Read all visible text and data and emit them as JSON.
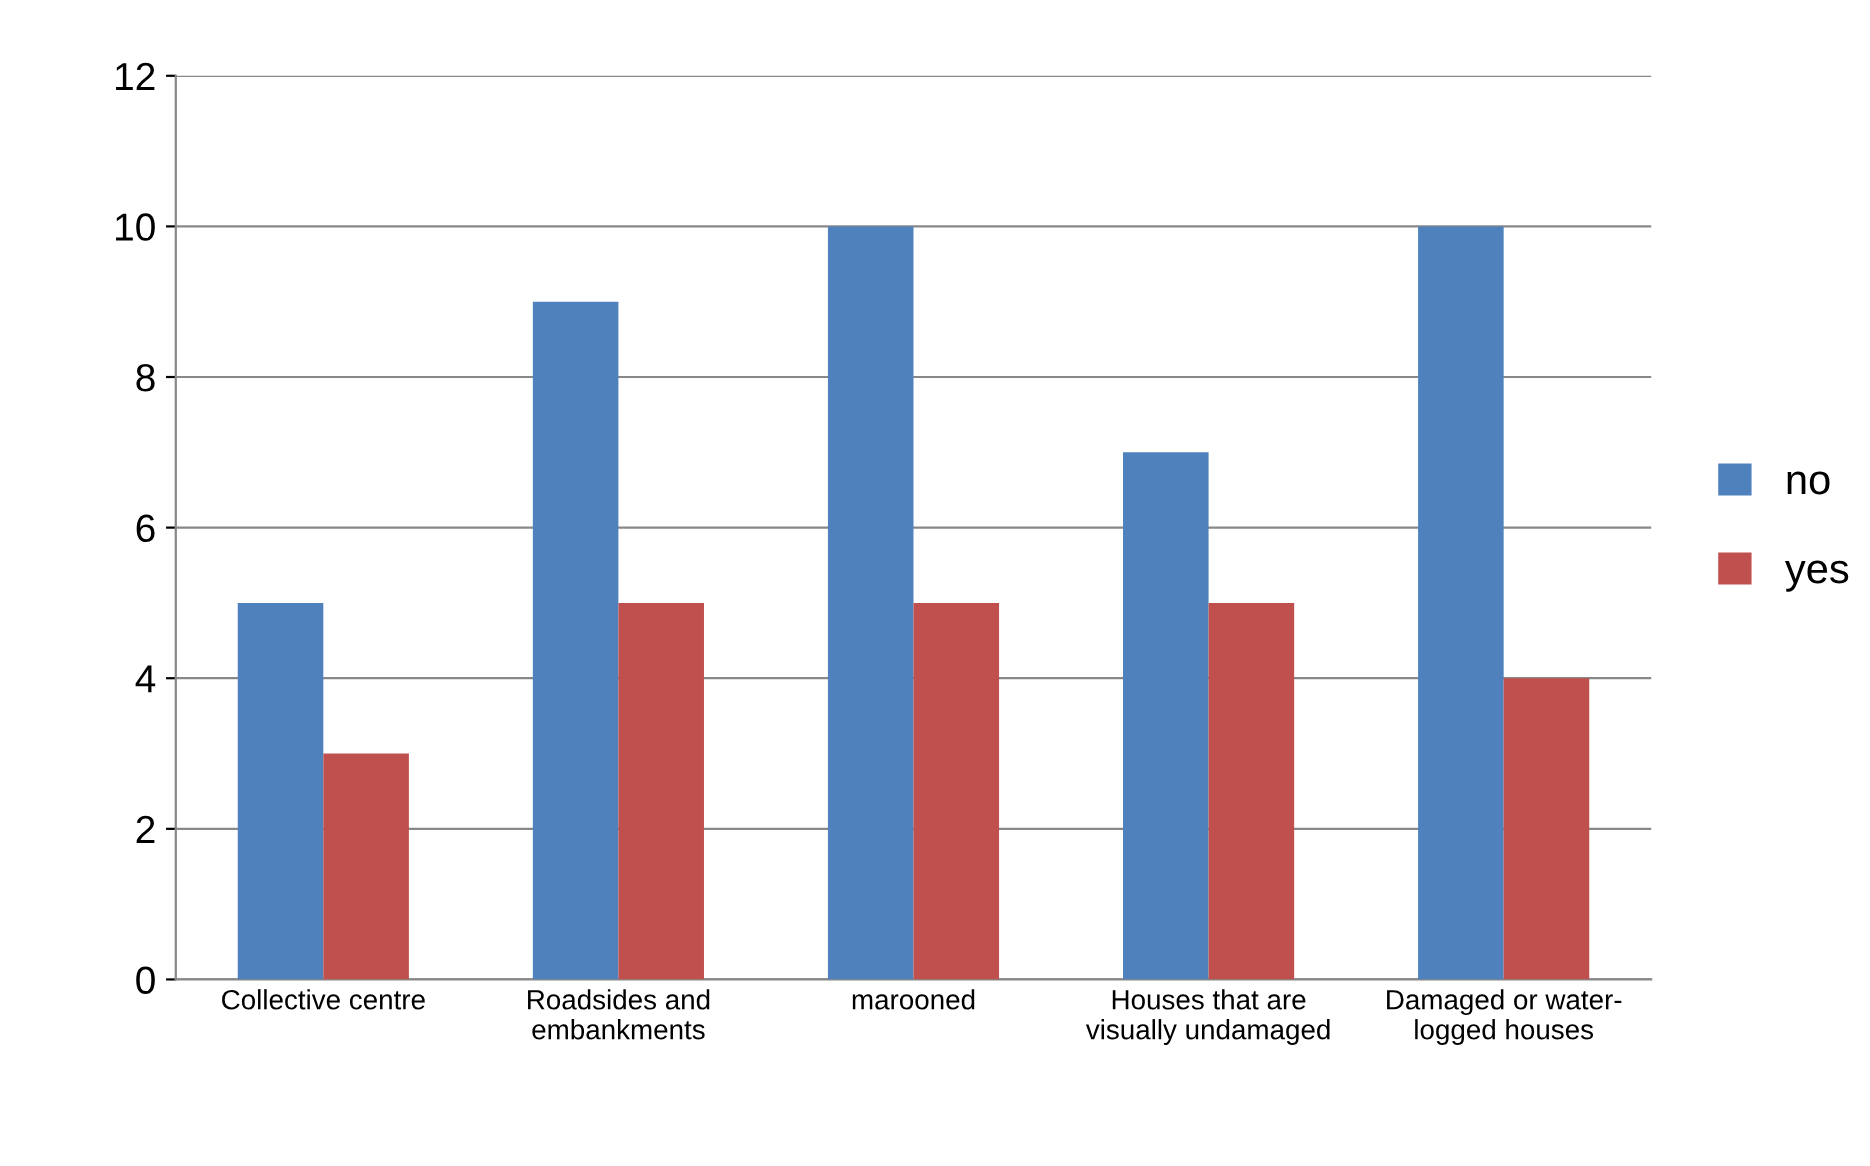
{
  "chart_data": {
    "type": "bar",
    "categories": [
      "Collective centre",
      "Roadsides and\nembankments",
      "marooned",
      "Houses that are\nvisually undamaged",
      "Damaged or water-\nlogged houses"
    ],
    "series": [
      {
        "name": "no",
        "color": "#4f81bd",
        "values": [
          5,
          9,
          10,
          7,
          10
        ]
      },
      {
        "name": "yes",
        "color": "#c0504d",
        "values": [
          3,
          5,
          5,
          5,
          4
        ]
      }
    ],
    "ylim": [
      0,
      12
    ],
    "yticks": [
      0,
      2,
      4,
      6,
      8,
      10,
      12
    ],
    "grid": "y",
    "legend": "right"
  }
}
